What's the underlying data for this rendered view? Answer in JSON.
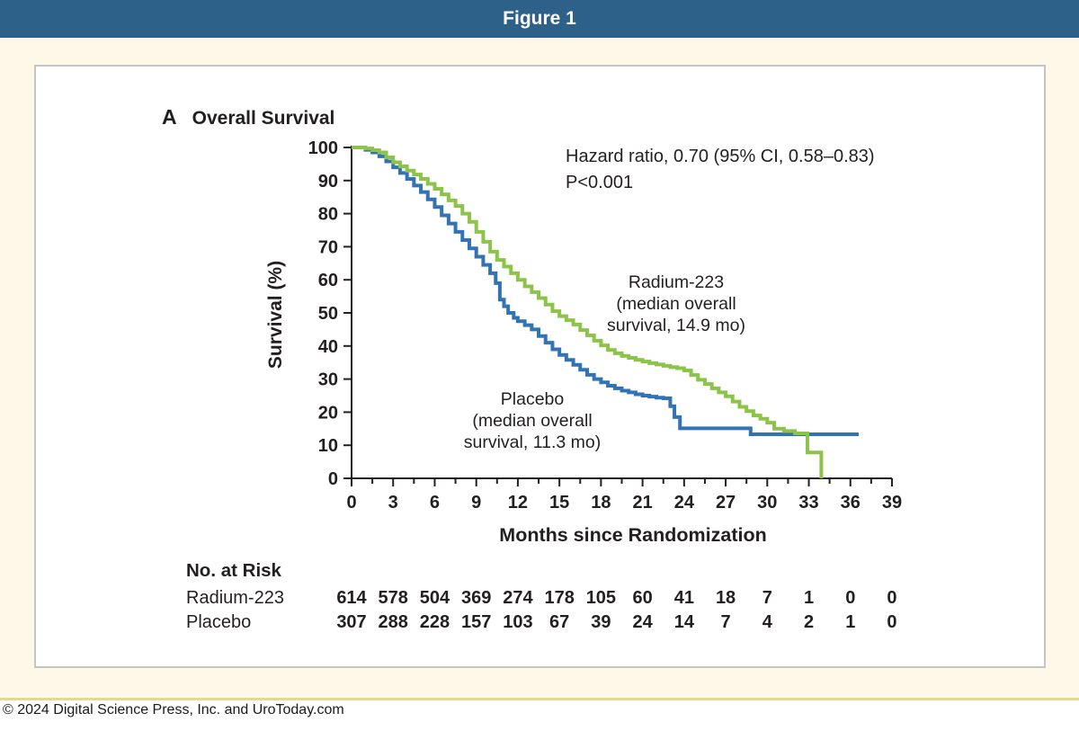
{
  "header": {
    "title": "Figure 1"
  },
  "footer": {
    "copyright": "© 2024 Digital Science Press, Inc. and UroToday.com"
  },
  "colors": {
    "titlebar_bg": "#2e618a",
    "card_bg": "#fdf8e7",
    "card_border": "#e7d98c",
    "panel_border": "#c6c6c1",
    "axis": "#231f20",
    "radium_green": "#8cc449",
    "placebo_blue": "#3273b5"
  },
  "chart_data": {
    "type": "line",
    "subtype": "kaplan-meier-step",
    "panel_label": "A",
    "title": "Overall Survival",
    "xlabel": "Months since Randomization",
    "ylabel": "Survival (%)",
    "xlim": [
      0,
      39
    ],
    "ylim": [
      0,
      100
    ],
    "x_ticks": [
      0,
      3,
      6,
      9,
      12,
      15,
      18,
      21,
      24,
      27,
      30,
      33,
      36,
      39
    ],
    "x_minor_tick_step": 1.5,
    "y_ticks": [
      0,
      10,
      20,
      30,
      40,
      50,
      60,
      70,
      80,
      90,
      100
    ],
    "grid": false,
    "legend_position": "inline-annotations",
    "annotations": {
      "hazard_ratio": "Hazard ratio, 0.70 (95% CI, 0.58–0.83)",
      "p_value": "P<0.001"
    },
    "series": [
      {
        "name": "Placebo",
        "color": "#3273b5",
        "median_overall_survival_mo": 11.3,
        "label_lines": [
          "Placebo",
          "(median overall",
          "survival, 11.3 mo)"
        ],
        "points": [
          [
            0,
            100
          ],
          [
            1,
            99.3
          ],
          [
            1.5,
            98.5
          ],
          [
            2,
            97.3
          ],
          [
            2.5,
            95.8
          ],
          [
            3,
            94
          ],
          [
            3.5,
            92.3
          ],
          [
            4,
            90.5
          ],
          [
            4.5,
            88.5
          ],
          [
            5,
            86.5
          ],
          [
            5.5,
            84.3
          ],
          [
            6,
            82
          ],
          [
            6.5,
            79.5
          ],
          [
            7,
            77
          ],
          [
            7.5,
            74.5
          ],
          [
            8,
            72
          ],
          [
            8.5,
            69.5
          ],
          [
            9,
            67
          ],
          [
            9.5,
            64.5
          ],
          [
            10,
            62
          ],
          [
            10.4,
            59
          ],
          [
            10.7,
            54
          ],
          [
            11,
            52
          ],
          [
            11.3,
            50
          ],
          [
            11.7,
            48.5
          ],
          [
            12,
            47.5
          ],
          [
            12.5,
            46.3
          ],
          [
            13,
            45
          ],
          [
            13.5,
            43
          ],
          [
            14,
            41
          ],
          [
            14.5,
            39
          ],
          [
            15,
            37.3
          ],
          [
            15.5,
            35.8
          ],
          [
            16,
            34.3
          ],
          [
            16.5,
            32.8
          ],
          [
            17,
            31.3
          ],
          [
            17.5,
            30
          ],
          [
            18,
            29
          ],
          [
            18.5,
            28
          ],
          [
            19,
            27.2
          ],
          [
            19.5,
            26.5
          ],
          [
            20,
            26
          ],
          [
            20.5,
            25.4
          ],
          [
            21,
            25
          ],
          [
            21.5,
            24.7
          ],
          [
            22,
            24.4
          ],
          [
            22.5,
            24.2
          ],
          [
            23,
            21.8
          ],
          [
            23.3,
            18.5
          ],
          [
            23.7,
            15.1
          ],
          [
            28.8,
            13.3
          ],
          [
            36.6,
            13.3
          ]
        ]
      },
      {
        "name": "Radium-223",
        "color": "#8cc449",
        "median_overall_survival_mo": 14.9,
        "label_lines": [
          "Radium-223",
          "(median overall",
          "survival, 14.9 mo)"
        ],
        "points": [
          [
            0,
            100
          ],
          [
            1,
            99.7
          ],
          [
            1.5,
            99.2
          ],
          [
            2,
            98.5
          ],
          [
            2.5,
            97
          ],
          [
            3,
            95.5
          ],
          [
            3.5,
            94.3
          ],
          [
            4,
            93
          ],
          [
            4.5,
            91.8
          ],
          [
            5,
            90.5
          ],
          [
            5.5,
            89
          ],
          [
            6,
            87.5
          ],
          [
            6.5,
            85.8
          ],
          [
            7,
            84
          ],
          [
            7.5,
            82.3
          ],
          [
            8,
            80
          ],
          [
            8.5,
            77.5
          ],
          [
            9,
            74.5
          ],
          [
            9.5,
            71.5
          ],
          [
            10,
            68.5
          ],
          [
            10.5,
            66
          ],
          [
            11,
            64
          ],
          [
            11.5,
            62
          ],
          [
            12,
            60
          ],
          [
            12.5,
            58
          ],
          [
            13,
            56.3
          ],
          [
            13.5,
            54.5
          ],
          [
            14,
            52.5
          ],
          [
            14.5,
            50.5
          ],
          [
            15,
            49
          ],
          [
            15.5,
            47.8
          ],
          [
            16,
            46.5
          ],
          [
            16.5,
            44.8
          ],
          [
            17,
            43.2
          ],
          [
            17.5,
            41.6
          ],
          [
            18,
            40.2
          ],
          [
            18.5,
            38.8
          ],
          [
            19,
            37.8
          ],
          [
            19.5,
            37
          ],
          [
            20,
            36.4
          ],
          [
            20.5,
            35.8
          ],
          [
            21,
            35.3
          ],
          [
            21.5,
            34.8
          ],
          [
            22,
            34.4
          ],
          [
            22.5,
            34
          ],
          [
            23,
            33.6
          ],
          [
            23.5,
            33.3
          ],
          [
            24,
            32.6
          ],
          [
            24.5,
            31.2
          ],
          [
            25,
            29.8
          ],
          [
            25.5,
            28.5
          ],
          [
            26,
            27.2
          ],
          [
            26.5,
            26
          ],
          [
            27,
            24.8
          ],
          [
            27.5,
            23.2
          ],
          [
            28,
            21.6
          ],
          [
            28.5,
            20.3
          ],
          [
            29,
            19
          ],
          [
            29.5,
            18
          ],
          [
            30,
            16.8
          ],
          [
            30.5,
            15
          ],
          [
            31.2,
            14.3
          ],
          [
            32,
            13.6
          ],
          [
            32.9,
            7.8
          ],
          [
            33.9,
            0
          ]
        ]
      }
    ],
    "no_at_risk": {
      "heading": "No. at Risk",
      "months": [
        0,
        3,
        6,
        9,
        12,
        15,
        18,
        21,
        24,
        27,
        30,
        33,
        36,
        39
      ],
      "rows": [
        {
          "label": "Radium-223",
          "values": [
            614,
            578,
            504,
            369,
            274,
            178,
            105,
            60,
            41,
            18,
            7,
            1,
            0,
            0
          ]
        },
        {
          "label": "Placebo",
          "values": [
            307,
            288,
            228,
            157,
            103,
            67,
            39,
            24,
            14,
            7,
            4,
            2,
            1,
            0
          ]
        }
      ]
    }
  }
}
